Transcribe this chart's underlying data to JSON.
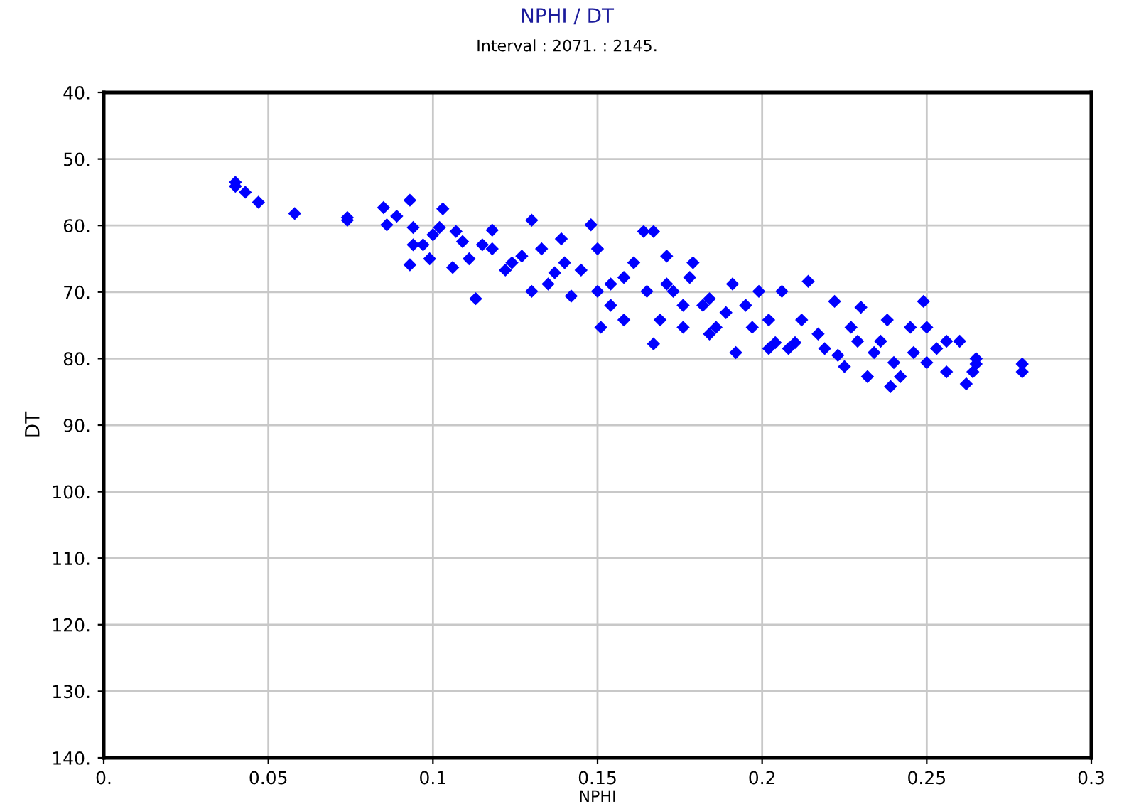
{
  "chart_data": {
    "type": "scatter",
    "title": "NPHI / DT",
    "subtitle": "Interval : 2071. : 2145.",
    "xlabel": "NPHI",
    "ylabel": "DT",
    "xlim": [
      0,
      0.3
    ],
    "xticks": [
      {
        "value": 0,
        "label": "0."
      },
      0.05,
      0.1,
      0.15,
      0.2,
      0.25,
      0.3
    ],
    "ylim": [
      140,
      40
    ],
    "yticks": [
      {
        "value": 40,
        "label": "40."
      },
      {
        "value": 50,
        "label": "50."
      },
      {
        "value": 60,
        "label": "60."
      },
      {
        "value": 70,
        "label": "70."
      },
      {
        "value": 80,
        "label": "80."
      },
      {
        "value": 90,
        "label": "90."
      },
      {
        "value": 100,
        "label": "100."
      },
      {
        "value": 110,
        "label": "110."
      },
      {
        "value": 120,
        "label": "120."
      },
      {
        "value": 130,
        "label": "130."
      },
      {
        "value": 140,
        "label": "140."
      }
    ],
    "grid": true,
    "marker": "diamond",
    "series": [
      {
        "color": "#0000ff",
        "x": [
          0.04,
          0.04,
          0.043,
          0.047,
          0.058,
          0.074,
          0.074,
          0.085,
          0.093,
          0.086,
          0.089,
          0.094,
          0.094,
          0.093,
          0.097,
          0.099,
          0.103,
          0.102,
          0.107,
          0.106,
          0.111,
          0.113,
          0.118,
          0.118,
          0.122,
          0.13,
          0.127,
          0.13,
          0.137,
          0.139,
          0.135,
          0.142,
          0.148,
          0.145,
          0.15,
          0.151,
          0.154,
          0.164,
          0.167,
          0.161,
          0.167,
          0.171,
          0.171,
          0.179,
          0.176,
          0.184,
          0.186,
          0.191,
          0.192,
          0.199,
          0.202,
          0.206,
          0.208,
          0.212,
          0.214,
          0.217,
          0.222,
          0.223,
          0.227,
          0.23,
          0.232,
          0.236,
          0.239,
          0.242,
          0.245,
          0.246,
          0.249,
          0.25,
          0.25,
          0.256,
          0.256,
          0.26,
          0.262,
          0.264,
          0.265,
          0.265,
          0.279,
          0.279,
          0.133,
          0.14,
          0.158,
          0.165,
          0.173,
          0.178,
          0.182,
          0.189,
          0.195,
          0.197,
          0.204,
          0.21,
          0.219,
          0.154,
          0.15,
          0.169,
          0.158,
          0.124,
          0.115,
          0.109,
          0.1,
          0.225,
          0.234,
          0.24,
          0.229,
          0.238,
          0.253,
          0.176,
          0.184,
          0.202
        ],
        "values": [
          53.5,
          54.1,
          55,
          56.5,
          58.2,
          58.8,
          59.2,
          57.3,
          56.2,
          59.9,
          58.6,
          60.3,
          62.9,
          65.9,
          62.9,
          65,
          57.5,
          60.3,
          60.9,
          66.3,
          65,
          71,
          60.7,
          63.5,
          66.7,
          59.2,
          64.6,
          69.9,
          67.1,
          62,
          68.8,
          70.6,
          59.9,
          66.7,
          63.5,
          75.3,
          68.8,
          60.9,
          60.9,
          65.6,
          77.8,
          68.8,
          64.6,
          65.6,
          72,
          71,
          75.3,
          68.8,
          79.1,
          69.9,
          74.2,
          69.9,
          78.5,
          74.2,
          68.4,
          76.3,
          71.4,
          79.5,
          75.3,
          72.3,
          82.7,
          77.4,
          84.2,
          82.7,
          75.3,
          79.1,
          71.4,
          75.3,
          80.6,
          82,
          77.4,
          77.4,
          83.8,
          82,
          80,
          80.8,
          80.8,
          82,
          63.5,
          65.6,
          67.8,
          69.9,
          69.9,
          67.8,
          72,
          73.1,
          72,
          75.3,
          77.6,
          77.6,
          78.5,
          72,
          69.9,
          74.2,
          74.2,
          65.6,
          62.9,
          62.4,
          61.4,
          81.2,
          79.1,
          80.6,
          77.4,
          74.2,
          78.5,
          75.3,
          76.3,
          78.5
        ]
      }
    ]
  }
}
